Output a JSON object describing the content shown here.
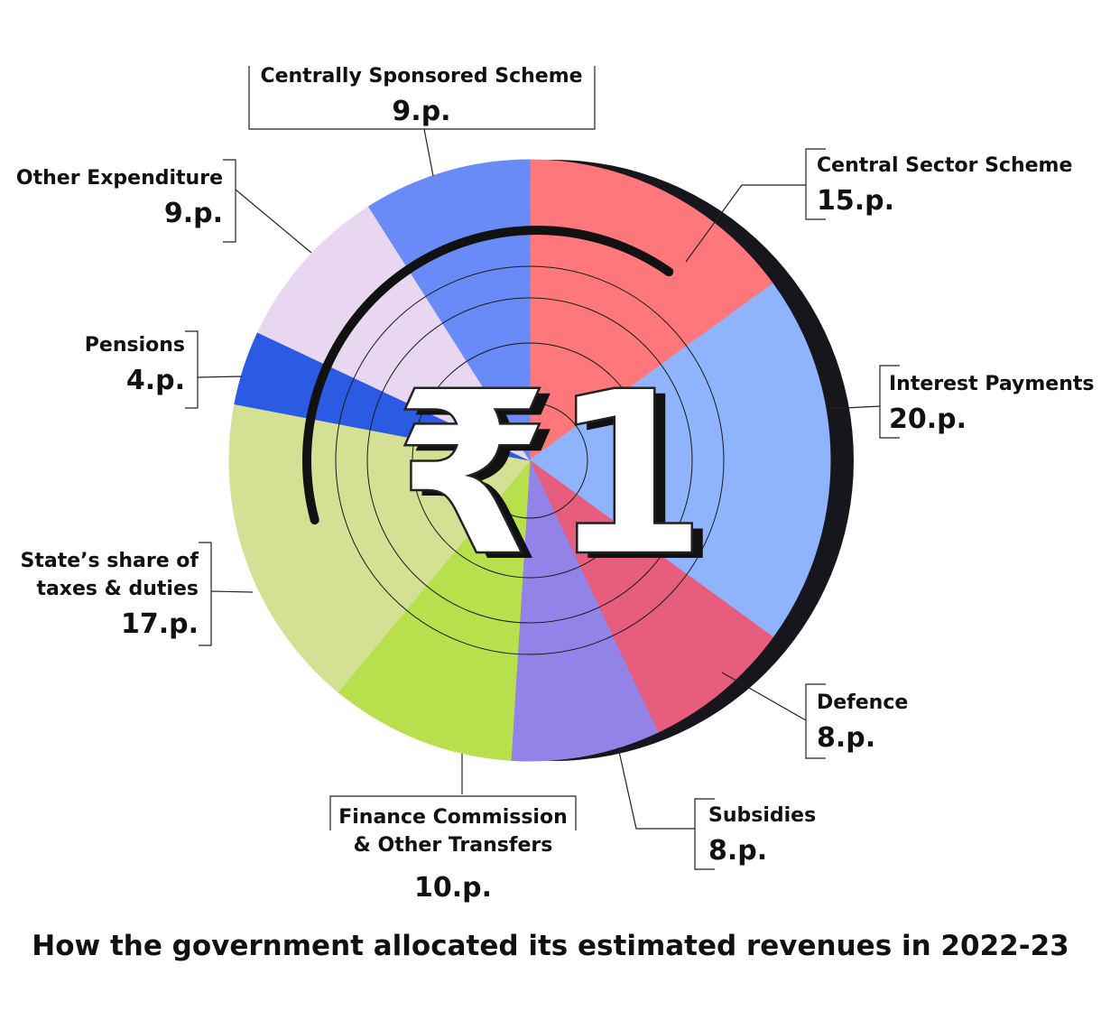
{
  "chart_data": {
    "type": "pie",
    "center_label": "₹1",
    "title": "How the government allocated its estimated revenues in 2022-23",
    "unit": "p.",
    "slices": [
      {
        "label": "Central Sector Scheme",
        "value": 15,
        "value_label": "15.p.",
        "color": "#fe777a"
      },
      {
        "label": "Interest Payments",
        "value": 20,
        "value_label": "20.p.",
        "color": "#8fb4fd"
      },
      {
        "label": "Defence",
        "value": 8,
        "value_label": "8.p.",
        "color": "#e75d7d"
      },
      {
        "label": "Subsidies",
        "value": 8,
        "value_label": "8.p.",
        "color": "#9383e8"
      },
      {
        "label": "Finance Commission & Other Transfers",
        "value": 10,
        "value_label": "10.p.",
        "color": "#b8e04d"
      },
      {
        "label": "State’s share of taxes & duties",
        "value": 17,
        "value_label": "17.p.",
        "color": "#d4e195"
      },
      {
        "label": "Pensions",
        "value": 4,
        "value_label": "4.p.",
        "color": "#2b5be3"
      },
      {
        "label": "Other Expenditure",
        "value": 9,
        "value_label": "9.p.",
        "color": "#e9d6f1"
      },
      {
        "label": "Centrally Sponsored Scheme",
        "value": 9,
        "value_label": "9.p.",
        "color": "#698bf7"
      }
    ]
  }
}
